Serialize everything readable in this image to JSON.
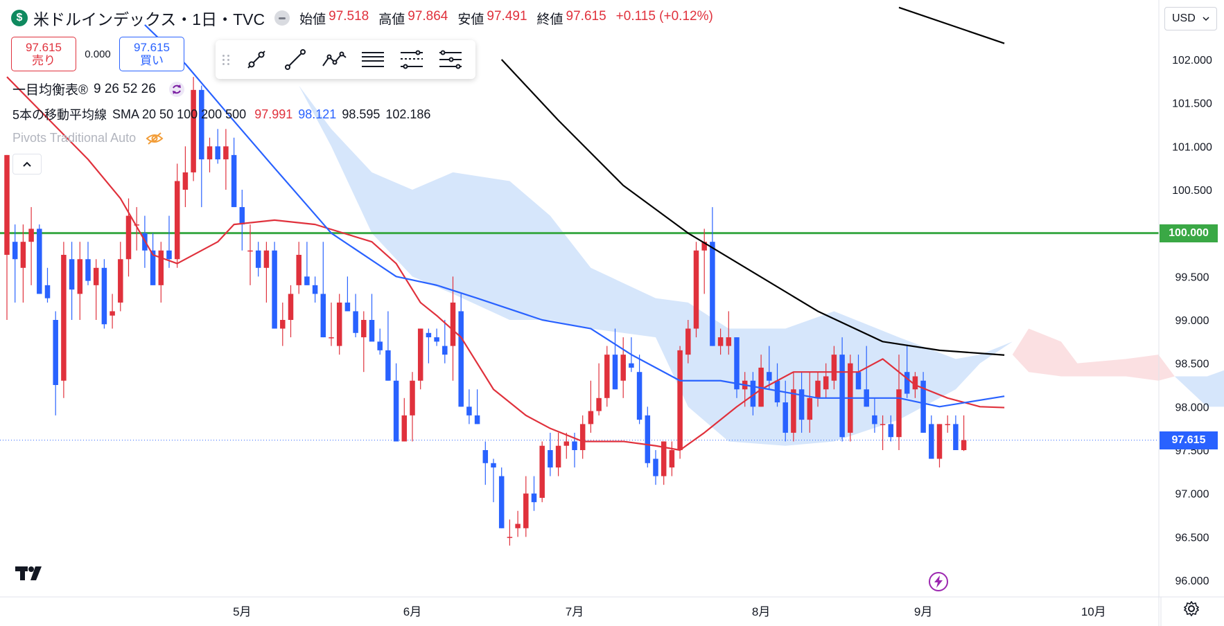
{
  "header": {
    "symbol_title": "米ドルインデックス・1日・TVC",
    "open_label": "始値",
    "open": "97.518",
    "high_label": "高値",
    "high": "97.864",
    "low_label": "安値",
    "low": "97.491",
    "close_label": "終値",
    "close": "97.615",
    "change": "+0.115 (+0.12%)"
  },
  "trade": {
    "sell_price": "97.615",
    "sell_label": "売り",
    "spread": "0.000",
    "buy_price": "97.615",
    "buy_label": "買い"
  },
  "legend": {
    "ichimoku": "一目均衡表®",
    "ichimoku_params": "9 26 52 26",
    "sma_title": "5本の移動平均線",
    "sma_params": "SMA 20 50 100 200 500",
    "sma20": "97.991",
    "sma50": "98.121",
    "sma100": "98.595",
    "sma200": "102.186",
    "pivots": "Pivots Traditional Auto"
  },
  "currency": "USD",
  "price_tags": {
    "green_line": "100.000",
    "last_price": "97.615"
  },
  "icons": [
    "dollar-logo-icon",
    "drawing-tools-icons",
    "refresh-icon",
    "eye-off-icon",
    "chevron-up-icon",
    "chevron-down-icon",
    "lightning-icon",
    "gear-icon",
    "tradingview-logo-icon"
  ],
  "colors": {
    "up": "#e0313c",
    "down": "#2962ff",
    "sma20": "#e0313c",
    "sma50": "#2962ff",
    "sma100": "#000000",
    "hline": "#3aa845",
    "cloud_bull": "#d6e6fb",
    "cloud_bear": "#fbe0e2"
  },
  "chart_data": {
    "type": "candlestick",
    "y_ticks": [
      "102.000",
      "101.500",
      "101.000",
      "100.500",
      "100.000",
      "99.500",
      "99.000",
      "98.500",
      "98.000",
      "97.500",
      "97.000",
      "96.500",
      "96.000"
    ],
    "ylim": [
      95.9,
      102.6
    ],
    "x_ticks": [
      "5月",
      "6月",
      "7月",
      "8月",
      "9月",
      "10月"
    ],
    "x_tick_index": [
      29,
      50,
      70,
      93,
      113,
      134
    ],
    "n_slots": 147,
    "horizontal_line": 100.0,
    "last_price": 97.615,
    "candles": [
      {
        "o": 99.75,
        "h": 100.9,
        "l": 99.0,
        "c": 100.9
      },
      {
        "o": 99.9,
        "h": 100.1,
        "l": 99.2,
        "c": 99.7
      },
      {
        "o": 99.6,
        "h": 100.1,
        "l": 99.2,
        "c": 99.9
      },
      {
        "o": 99.9,
        "h": 100.3,
        "l": 99.4,
        "c": 100.05
      },
      {
        "o": 100.05,
        "h": 100.1,
        "l": 99.3,
        "c": 99.3
      },
      {
        "o": 99.4,
        "h": 99.6,
        "l": 99.2,
        "c": 99.25
      },
      {
        "o": 99.0,
        "h": 99.1,
        "l": 97.9,
        "c": 98.25
      },
      {
        "o": 98.3,
        "h": 99.9,
        "l": 98.1,
        "c": 99.75
      },
      {
        "o": 99.7,
        "h": 99.9,
        "l": 99.0,
        "c": 99.35
      },
      {
        "o": 99.3,
        "h": 99.9,
        "l": 99.0,
        "c": 99.7
      },
      {
        "o": 99.7,
        "h": 99.9,
        "l": 99.4,
        "c": 99.45
      },
      {
        "o": 99.4,
        "h": 99.7,
        "l": 99.0,
        "c": 99.6
      },
      {
        "o": 99.6,
        "h": 99.7,
        "l": 98.9,
        "c": 98.95
      },
      {
        "o": 99.05,
        "h": 99.3,
        "l": 98.9,
        "c": 99.1
      },
      {
        "o": 99.2,
        "h": 99.9,
        "l": 99.1,
        "c": 99.7
      },
      {
        "o": 99.7,
        "h": 100.4,
        "l": 99.5,
        "c": 100.2
      },
      {
        "o": 100.1,
        "h": 100.3,
        "l": 99.8,
        "c": 100.1
      },
      {
        "o": 100.0,
        "h": 100.2,
        "l": 99.6,
        "c": 99.8
      },
      {
        "o": 99.8,
        "h": 100.0,
        "l": 99.4,
        "c": 99.4
      },
      {
        "o": 99.4,
        "h": 99.9,
        "l": 99.2,
        "c": 99.8
      },
      {
        "o": 99.8,
        "h": 100.2,
        "l": 99.6,
        "c": 99.7
      },
      {
        "o": 99.7,
        "h": 100.8,
        "l": 99.6,
        "c": 100.6
      },
      {
        "o": 100.5,
        "h": 101.0,
        "l": 100.3,
        "c": 100.7
      },
      {
        "o": 100.7,
        "h": 101.8,
        "l": 100.6,
        "c": 101.65
      },
      {
        "o": 101.65,
        "h": 101.7,
        "l": 100.3,
        "c": 100.85
      },
      {
        "o": 100.85,
        "h": 101.1,
        "l": 100.7,
        "c": 101.0
      },
      {
        "o": 101.0,
        "h": 101.2,
        "l": 100.8,
        "c": 100.85
      },
      {
        "o": 100.85,
        "h": 101.2,
        "l": 100.5,
        "c": 101.0
      },
      {
        "o": 100.9,
        "h": 101.1,
        "l": 100.3,
        "c": 100.3
      },
      {
        "o": 100.3,
        "h": 100.5,
        "l": 99.8,
        "c": 100.1
      },
      {
        "o": 99.8,
        "h": 100.1,
        "l": 99.4,
        "c": 99.8
      },
      {
        "o": 99.8,
        "h": 99.9,
        "l": 99.5,
        "c": 99.6
      },
      {
        "o": 99.6,
        "h": 99.9,
        "l": 99.2,
        "c": 99.8
      },
      {
        "o": 99.8,
        "h": 99.9,
        "l": 98.9,
        "c": 98.9
      },
      {
        "o": 98.9,
        "h": 99.2,
        "l": 98.7,
        "c": 99.0
      },
      {
        "o": 99.0,
        "h": 99.4,
        "l": 98.8,
        "c": 99.3
      },
      {
        "o": 99.4,
        "h": 99.9,
        "l": 99.3,
        "c": 99.75
      },
      {
        "o": 99.5,
        "h": 99.9,
        "l": 99.4,
        "c": 99.4
      },
      {
        "o": 99.4,
        "h": 99.5,
        "l": 99.2,
        "c": 99.3
      },
      {
        "o": 99.3,
        "h": 99.9,
        "l": 98.8,
        "c": 98.8
      },
      {
        "o": 98.8,
        "h": 99.2,
        "l": 98.7,
        "c": 98.8
      },
      {
        "o": 98.7,
        "h": 99.3,
        "l": 98.6,
        "c": 99.2
      },
      {
        "o": 99.2,
        "h": 99.5,
        "l": 99.1,
        "c": 99.1
      },
      {
        "o": 99.1,
        "h": 99.3,
        "l": 98.8,
        "c": 98.85
      },
      {
        "o": 98.8,
        "h": 99.1,
        "l": 98.4,
        "c": 99.0
      },
      {
        "o": 99.0,
        "h": 99.3,
        "l": 98.8,
        "c": 98.75
      },
      {
        "o": 98.75,
        "h": 98.9,
        "l": 98.6,
        "c": 98.65
      },
      {
        "o": 98.65,
        "h": 99.1,
        "l": 98.3,
        "c": 98.3
      },
      {
        "o": 98.3,
        "h": 98.5,
        "l": 97.6,
        "c": 97.6
      },
      {
        "o": 97.6,
        "h": 98.1,
        "l": 97.6,
        "c": 97.9
      },
      {
        "o": 97.9,
        "h": 98.4,
        "l": 97.6,
        "c": 98.3
      },
      {
        "o": 98.3,
        "h": 98.9,
        "l": 98.2,
        "c": 98.9
      },
      {
        "o": 98.85,
        "h": 98.9,
        "l": 98.5,
        "c": 98.8
      },
      {
        "o": 98.8,
        "h": 98.9,
        "l": 98.7,
        "c": 98.75
      },
      {
        "o": 98.7,
        "h": 99.0,
        "l": 98.5,
        "c": 98.6
      },
      {
        "o": 98.7,
        "h": 99.5,
        "l": 98.3,
        "c": 99.2
      },
      {
        "o": 99.1,
        "h": 99.3,
        "l": 98.0,
        "c": 98.0
      },
      {
        "o": 98.0,
        "h": 98.2,
        "l": 97.8,
        "c": 97.9
      },
      {
        "o": 97.9,
        "h": 98.2,
        "l": 97.8,
        "c": 97.8
      },
      {
        "o": 97.5,
        "h": 97.6,
        "l": 97.1,
        "c": 97.35
      },
      {
        "o": 97.35,
        "h": 97.4,
        "l": 96.9,
        "c": 97.3
      },
      {
        "o": 97.2,
        "h": 97.3,
        "l": 96.6,
        "c": 96.6
      },
      {
        "o": 96.5,
        "h": 96.7,
        "l": 96.4,
        "c": 96.5
      },
      {
        "o": 96.6,
        "h": 96.8,
        "l": 96.5,
        "c": 96.65
      },
      {
        "o": 96.6,
        "h": 97.2,
        "l": 96.5,
        "c": 97.0
      },
      {
        "o": 97.0,
        "h": 97.2,
        "l": 96.8,
        "c": 96.9
      },
      {
        "o": 96.95,
        "h": 97.6,
        "l": 96.9,
        "c": 97.55
      },
      {
        "o": 97.5,
        "h": 97.7,
        "l": 97.2,
        "c": 97.3
      },
      {
        "o": 97.3,
        "h": 97.7,
        "l": 97.2,
        "c": 97.55
      },
      {
        "o": 97.55,
        "h": 97.7,
        "l": 97.4,
        "c": 97.6
      },
      {
        "o": 97.6,
        "h": 97.7,
        "l": 97.3,
        "c": 97.5
      },
      {
        "o": 97.5,
        "h": 97.9,
        "l": 97.4,
        "c": 97.8
      },
      {
        "o": 97.8,
        "h": 98.3,
        "l": 97.7,
        "c": 97.95
      },
      {
        "o": 97.95,
        "h": 98.5,
        "l": 97.9,
        "c": 98.1
      },
      {
        "o": 98.1,
        "h": 98.7,
        "l": 98.0,
        "c": 98.6
      },
      {
        "o": 98.6,
        "h": 98.9,
        "l": 98.2,
        "c": 98.2
      },
      {
        "o": 98.3,
        "h": 98.8,
        "l": 98.1,
        "c": 98.6
      },
      {
        "o": 98.5,
        "h": 98.8,
        "l": 98.4,
        "c": 98.45
      },
      {
        "o": 98.4,
        "h": 98.6,
        "l": 97.8,
        "c": 97.85
      },
      {
        "o": 97.9,
        "h": 98.0,
        "l": 97.3,
        "c": 97.35
      },
      {
        "o": 97.4,
        "h": 97.5,
        "l": 97.1,
        "c": 97.2
      },
      {
        "o": 97.2,
        "h": 97.6,
        "l": 97.1,
        "c": 97.6
      },
      {
        "o": 97.3,
        "h": 97.6,
        "l": 97.2,
        "c": 97.5
      },
      {
        "o": 97.5,
        "h": 98.7,
        "l": 97.4,
        "c": 98.65
      },
      {
        "o": 98.6,
        "h": 99.0,
        "l": 98.5,
        "c": 98.9
      },
      {
        "o": 98.9,
        "h": 99.9,
        "l": 98.8,
        "c": 99.8
      },
      {
        "o": 99.8,
        "h": 100.05,
        "l": 99.3,
        "c": 99.9
      },
      {
        "o": 99.9,
        "h": 100.3,
        "l": 98.7,
        "c": 98.7
      },
      {
        "o": 98.7,
        "h": 98.9,
        "l": 98.6,
        "c": 98.8
      },
      {
        "o": 98.7,
        "h": 99.1,
        "l": 98.6,
        "c": 98.8
      },
      {
        "o": 98.8,
        "h": 98.8,
        "l": 98.1,
        "c": 98.2
      },
      {
        "o": 98.2,
        "h": 98.4,
        "l": 98.0,
        "c": 98.3
      },
      {
        "o": 98.3,
        "h": 98.4,
        "l": 97.9,
        "c": 98.0
      },
      {
        "o": 98.0,
        "h": 98.6,
        "l": 98.0,
        "c": 98.45
      },
      {
        "o": 98.4,
        "h": 98.7,
        "l": 98.2,
        "c": 98.3
      },
      {
        "o": 98.3,
        "h": 98.5,
        "l": 98.0,
        "c": 98.05
      },
      {
        "o": 98.05,
        "h": 98.3,
        "l": 97.6,
        "c": 97.7
      },
      {
        "o": 97.7,
        "h": 98.4,
        "l": 97.6,
        "c": 98.2
      },
      {
        "o": 98.2,
        "h": 98.4,
        "l": 97.7,
        "c": 97.85
      },
      {
        "o": 97.85,
        "h": 98.4,
        "l": 97.7,
        "c": 98.1
      },
      {
        "o": 98.1,
        "h": 98.4,
        "l": 98.0,
        "c": 98.3
      },
      {
        "o": 98.2,
        "h": 98.5,
        "l": 98.1,
        "c": 98.35
      },
      {
        "o": 98.3,
        "h": 98.7,
        "l": 98.2,
        "c": 98.6
      },
      {
        "o": 98.6,
        "h": 98.8,
        "l": 97.6,
        "c": 97.65
      },
      {
        "o": 97.7,
        "h": 98.6,
        "l": 97.6,
        "c": 98.5
      },
      {
        "o": 98.4,
        "h": 98.6,
        "l": 98.2,
        "c": 98.2
      },
      {
        "o": 98.2,
        "h": 98.7,
        "l": 98.0,
        "c": 98.0
      },
      {
        "o": 97.9,
        "h": 98.1,
        "l": 97.7,
        "c": 97.8
      },
      {
        "o": 97.8,
        "h": 97.9,
        "l": 97.5,
        "c": 97.8
      },
      {
        "o": 97.8,
        "h": 97.9,
        "l": 97.6,
        "c": 97.65
      },
      {
        "o": 97.65,
        "h": 98.6,
        "l": 97.5,
        "c": 98.2
      },
      {
        "o": 98.4,
        "h": 98.7,
        "l": 98.1,
        "c": 98.15
      },
      {
        "o": 98.2,
        "h": 98.4,
        "l": 98.1,
        "c": 98.35
      },
      {
        "o": 98.3,
        "h": 98.4,
        "l": 97.7,
        "c": 97.7
      },
      {
        "o": 97.8,
        "h": 97.9,
        "l": 97.4,
        "c": 97.4
      },
      {
        "o": 97.4,
        "h": 97.8,
        "l": 97.3,
        "c": 97.8
      },
      {
        "o": 97.8,
        "h": 97.9,
        "l": 97.7,
        "c": 97.8
      },
      {
        "o": 97.8,
        "h": 97.9,
        "l": 97.5,
        "c": 97.5
      },
      {
        "o": 97.5,
        "h": 97.9,
        "l": 97.49,
        "c": 97.615
      }
    ],
    "series": [
      {
        "name": "SMA 20",
        "values": [
          [
            0,
            101.8
          ],
          [
            10,
            100.85
          ],
          [
            14,
            100.4
          ],
          [
            18,
            99.75
          ],
          [
            21,
            99.65
          ],
          [
            26,
            99.9
          ],
          [
            28,
            100.1
          ],
          [
            33,
            100.15
          ],
          [
            38,
            100.1
          ],
          [
            45,
            99.9
          ],
          [
            48,
            99.65
          ],
          [
            51,
            99.2
          ],
          [
            53,
            99.05
          ],
          [
            56,
            98.8
          ],
          [
            60,
            98.2
          ],
          [
            64,
            97.9
          ],
          [
            67,
            97.75
          ],
          [
            71,
            97.6
          ],
          [
            76,
            97.6
          ],
          [
            80,
            97.55
          ],
          [
            83,
            97.5
          ],
          [
            86,
            97.7
          ],
          [
            90,
            98.0
          ],
          [
            93,
            98.2
          ],
          [
            97,
            98.4
          ],
          [
            101,
            98.4
          ],
          [
            105,
            98.4
          ],
          [
            108,
            98.55
          ],
          [
            112,
            98.25
          ],
          [
            116,
            98.1
          ],
          [
            120,
            98.0
          ],
          [
            123,
            97.99
          ]
        ]
      },
      {
        "name": "SMA 50",
        "values": [
          [
            17,
            102.4
          ],
          [
            22,
            101.95
          ],
          [
            27,
            101.4
          ],
          [
            33,
            100.75
          ],
          [
            40,
            100.0
          ],
          [
            48,
            99.5
          ],
          [
            53,
            99.4
          ],
          [
            58,
            99.25
          ],
          [
            66,
            99.0
          ],
          [
            72,
            98.9
          ],
          [
            77,
            98.6
          ],
          [
            83,
            98.3
          ],
          [
            88,
            98.3
          ],
          [
            94,
            98.2
          ],
          [
            100,
            98.1
          ],
          [
            110,
            98.1
          ],
          [
            115,
            98.0
          ],
          [
            123,
            98.121
          ]
        ]
      },
      {
        "name": "SMA 100",
        "values": [
          [
            61,
            102.0
          ],
          [
            68,
            101.3
          ],
          [
            76,
            100.55
          ],
          [
            84,
            100.0
          ],
          [
            92,
            99.55
          ],
          [
            100,
            99.1
          ],
          [
            108,
            98.75
          ],
          [
            115,
            98.65
          ],
          [
            123,
            98.595
          ]
        ]
      },
      {
        "name": "SMA 200",
        "values": [
          [
            110,
            102.6
          ],
          [
            123,
            102.186
          ]
        ]
      }
    ],
    "cloud_bull": {
      "upper": [
        [
          32,
          102.4
        ],
        [
          36,
          101.7
        ],
        [
          40,
          101.2
        ],
        [
          45,
          100.7
        ],
        [
          50,
          100.5
        ],
        [
          55,
          100.7
        ],
        [
          62,
          100.6
        ],
        [
          67,
          100.2
        ],
        [
          72,
          99.6
        ],
        [
          80,
          99.25
        ],
        [
          84,
          99.2
        ],
        [
          89,
          98.9
        ],
        [
          96,
          98.9
        ],
        [
          102,
          99.1
        ],
        [
          110,
          98.8
        ],
        [
          117,
          98.55
        ],
        [
          120,
          98.6
        ],
        [
          124,
          98.75
        ]
      ],
      "lower": [
        [
          32,
          102.4
        ],
        [
          36,
          101.7
        ],
        [
          40,
          101.0
        ],
        [
          45,
          100.0
        ],
        [
          50,
          99.5
        ],
        [
          55,
          99.3
        ],
        [
          62,
          99.0
        ],
        [
          67,
          99.0
        ],
        [
          72,
          98.9
        ],
        [
          80,
          98.8
        ],
        [
          84,
          98.0
        ],
        [
          89,
          97.6
        ],
        [
          96,
          97.55
        ],
        [
          102,
          97.6
        ],
        [
          110,
          97.85
        ],
        [
          117,
          98.2
        ],
        [
          120,
          98.5
        ],
        [
          124,
          98.75
        ]
      ]
    },
    "cloud_bear": {
      "upper": [
        [
          124,
          98.6
        ],
        [
          126,
          98.9
        ],
        [
          130,
          98.75
        ],
        [
          132,
          98.5
        ],
        [
          138,
          98.55
        ],
        [
          142,
          98.6
        ],
        [
          144,
          98.35
        ]
      ],
      "lower": [
        [
          124,
          98.6
        ],
        [
          126,
          98.4
        ],
        [
          130,
          98.35
        ],
        [
          132,
          98.35
        ],
        [
          138,
          98.35
        ],
        [
          142,
          98.3
        ],
        [
          144,
          98.35
        ]
      ]
    },
    "cloud_bull2": {
      "upper": [
        [
          144,
          98.35
        ],
        [
          148,
          98.35
        ],
        [
          151,
          98.45
        ]
      ],
      "lower": [
        [
          144,
          98.35
        ],
        [
          148,
          98.0
        ],
        [
          151,
          98.0
        ]
      ]
    }
  }
}
